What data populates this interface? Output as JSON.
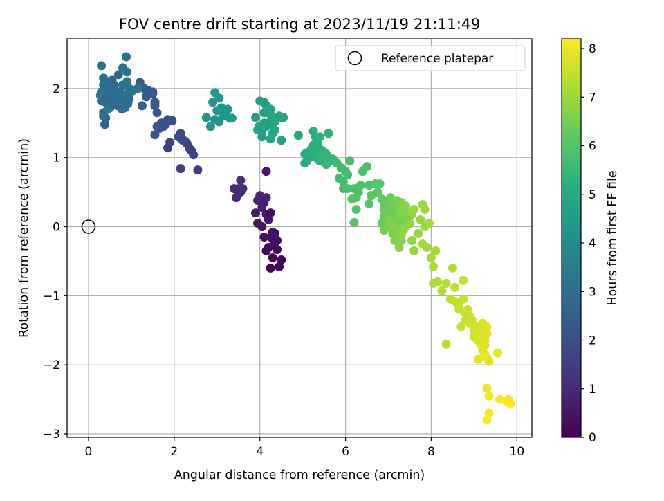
{
  "chart_data": {
    "type": "scatter",
    "title": "FOV centre drift starting at 2023/11/19 21:11:49",
    "xlabel": "Angular distance from reference (arcmin)",
    "ylabel": "Rotation from reference (arcmin)",
    "xlim": [
      -0.5,
      10.35
    ],
    "ylim": [
      -3.05,
      2.72
    ],
    "xticks": [
      0,
      2,
      4,
      6,
      8,
      10
    ],
    "yticks": [
      -3,
      -2,
      -1,
      0,
      1,
      2
    ],
    "xtick_labels": [
      "0",
      "2",
      "4",
      "6",
      "8",
      "10"
    ],
    "ytick_labels": [
      "−3",
      "−2",
      "−1",
      "0",
      "1",
      "2"
    ],
    "grid": true,
    "legend": {
      "placement": "top-right",
      "entries": [
        "Reference platepar"
      ]
    },
    "reference": {
      "x": 0,
      "y": 0,
      "label": "Reference platepar"
    },
    "colorbar": {
      "label": "Hours from first FF file",
      "range": [
        0,
        8.2
      ],
      "ticks": [
        0,
        1,
        2,
        3,
        4,
        5,
        6,
        7,
        8
      ],
      "tick_labels": [
        "0",
        "1",
        "2",
        "3",
        "4",
        "5",
        "6",
        "7",
        "8"
      ],
      "colormap": "viridis"
    },
    "series": [
      {
        "x": [
          4.25,
          4.45,
          4.3,
          4.5,
          4.15,
          4.4,
          4.2,
          4.35,
          4.3,
          4.1,
          4.05,
          3.95,
          4.2,
          4.15,
          3.9,
          4.05,
          4.1,
          3.95,
          4.15,
          4.0,
          4.25,
          4.35,
          4.4,
          4.3,
          4.28,
          4.32,
          4.15
        ],
        "y": [
          -0.6,
          -0.58,
          -0.45,
          -0.48,
          -0.35,
          -0.33,
          -0.3,
          -0.25,
          -0.18,
          -0.15,
          0.0,
          0.05,
          0.1,
          0.18,
          0.2,
          0.28,
          0.35,
          0.38,
          0.42,
          0.45,
          0.2,
          -0.1,
          -0.2,
          -0.08,
          -0.15,
          -0.14,
          0.8
        ],
        "c": [
          0.05,
          0.1,
          0.12,
          0.15,
          0.2,
          0.22,
          0.25,
          0.3,
          0.35,
          0.4,
          0.45,
          0.5,
          0.55,
          0.6,
          0.65,
          0.7,
          0.75,
          0.8,
          0.85,
          0.9,
          0.3,
          0.28,
          0.33,
          0.38,
          0.4,
          0.42,
          0.5
        ]
      },
      {
        "x": [
          3.45,
          3.55,
          3.6,
          3.5,
          3.55,
          3.4,
          3.5
        ],
        "y": [
          0.42,
          0.5,
          0.55,
          0.55,
          0.67,
          0.55,
          0.48
        ],
        "c": [
          0.95,
          1.0,
          1.05,
          1.1,
          1.1,
          1.05,
          1.0
        ]
      },
      {
        "x": [
          2.15,
          2.55,
          2.45,
          2.4,
          2.3,
          2.25,
          2.2,
          2.1,
          2.15,
          1.95,
          1.85,
          1.75,
          1.6,
          1.55,
          1.85,
          1.6,
          1.55,
          1.7,
          1.9,
          1.95,
          1.8,
          1.65,
          1.55,
          1.5,
          2.35
        ],
        "y": [
          0.84,
          0.82,
          1.04,
          1.1,
          1.2,
          1.24,
          1.25,
          1.3,
          1.35,
          1.53,
          1.55,
          1.45,
          1.45,
          1.33,
          1.14,
          1.65,
          1.75,
          1.5,
          1.22,
          1.54,
          1.48,
          1.42,
          1.8,
          1.95,
          1.14
        ],
        "c": [
          1.5,
          1.45,
          1.6,
          1.65,
          1.7,
          1.75,
          1.8,
          1.85,
          1.9,
          1.95,
          2.0,
          2.05,
          2.1,
          2.15,
          1.55,
          2.2,
          2.25,
          2.0,
          1.7,
          1.9,
          2.05,
          2.1,
          2.25,
          2.3,
          1.6
        ]
      },
      {
        "x": [
          0.38,
          0.4,
          0.35,
          0.5,
          0.3,
          0.45,
          0.55,
          0.6,
          0.5,
          0.35,
          0.3,
          0.28,
          0.4,
          0.5,
          0.45,
          0.65,
          0.7,
          0.75,
          0.8,
          0.85,
          0.9,
          0.85,
          0.8,
          0.9,
          0.95,
          0.7,
          0.6,
          0.55,
          0.45,
          0.35,
          0.3,
          0.4,
          0.5,
          0.55,
          0.65,
          0.7,
          0.6,
          0.75,
          0.8,
          0.88,
          0.9,
          0.45,
          0.35,
          0.4,
          1.2,
          1.3,
          1.35,
          1.45,
          1.55,
          1.4,
          1.25,
          1.5,
          0.92,
          0.78,
          0.68,
          0.42,
          0.58,
          0.7,
          0.85,
          0.95,
          1.0,
          1.15
        ],
        "y": [
          1.48,
          1.57,
          1.65,
          1.72,
          1.82,
          1.85,
          1.9,
          1.95,
          2.0,
          2.05,
          1.95,
          1.9,
          1.8,
          1.75,
          1.7,
          1.78,
          1.82,
          1.85,
          1.75,
          1.72,
          1.8,
          1.9,
          2.05,
          2.1,
          2.0,
          2.2,
          2.05,
          2.12,
          2.1,
          2.15,
          2.33,
          2.1,
          1.98,
          1.85,
          1.92,
          1.95,
          1.88,
          1.95,
          2.3,
          2.46,
          2.24,
          1.95,
          1.6,
          1.8,
          2.09,
          2.0,
          1.88,
          1.95,
          1.8,
          1.97,
          1.75,
          1.92,
          1.78,
          1.7,
          1.75,
          1.85,
          1.78,
          1.82,
          1.9,
          1.85,
          1.95,
          2.0
        ],
        "c": [
          2.6,
          2.65,
          2.7,
          2.75,
          2.8,
          2.85,
          2.9,
          2.95,
          3.0,
          3.05,
          3.1,
          3.15,
          3.2,
          3.25,
          3.3,
          2.8,
          2.85,
          2.9,
          2.95,
          3.0,
          3.05,
          3.1,
          3.15,
          3.2,
          3.25,
          2.7,
          2.75,
          2.8,
          2.85,
          2.9,
          3.0,
          3.05,
          3.1,
          3.15,
          2.9,
          2.95,
          3.0,
          3.05,
          3.1,
          3.15,
          3.2,
          2.95,
          3.0,
          3.05,
          2.4,
          2.45,
          2.5,
          2.35,
          2.3,
          2.5,
          2.55,
          2.35,
          3.1,
          3.0,
          2.9,
          2.8,
          2.85,
          2.9,
          3.0,
          3.05,
          3.1,
          3.2
        ]
      },
      {
        "x": [
          2.95,
          3.05,
          3.1,
          3.0,
          2.9,
          2.85,
          3.15,
          3.2,
          3.3,
          3.25,
          2.75,
          3.35,
          3.05,
          2.95,
          3.2
        ],
        "y": [
          1.94,
          1.86,
          1.72,
          1.68,
          1.8,
          1.45,
          1.6,
          1.68,
          1.57,
          1.7,
          1.58,
          1.57,
          1.52,
          1.55,
          1.62
        ],
        "c": [
          4.3,
          4.35,
          4.4,
          4.45,
          4.3,
          4.35,
          4.4,
          4.45,
          4.5,
          4.4,
          4.3,
          4.5,
          4.35,
          4.3,
          4.4
        ]
      },
      {
        "x": [
          3.9,
          4.0,
          4.05,
          4.1,
          4.15,
          4.2,
          4.25,
          4.3,
          4.35,
          4.45,
          4.55,
          4.5,
          4.1,
          4.2,
          3.95,
          4.3,
          4.25,
          4.1,
          4.0,
          4.15,
          3.98,
          4.05,
          4.25,
          4.5,
          4.35
        ],
        "y": [
          1.58,
          1.42,
          1.38,
          1.5,
          1.45,
          1.48,
          1.62,
          1.55,
          1.4,
          1.6,
          1.58,
          1.25,
          1.65,
          1.5,
          1.4,
          1.35,
          1.27,
          1.8,
          1.82,
          1.75,
          1.45,
          1.3,
          1.7,
          1.58,
          1.52
        ],
        "c": [
          4.6,
          4.65,
          4.7,
          4.75,
          4.8,
          4.85,
          4.9,
          4.95,
          5.0,
          4.7,
          4.75,
          4.8,
          4.6,
          4.65,
          4.7,
          4.85,
          4.9,
          4.55,
          4.6,
          4.65,
          4.7,
          4.75,
          4.8,
          4.85,
          4.9
        ]
      },
      {
        "x": [
          4.9,
          5.05,
          5.1,
          5.2,
          5.25,
          5.3,
          5.35,
          5.4,
          5.45,
          5.5,
          5.55,
          5.6,
          5.05,
          5.15,
          5.3,
          5.4,
          5.5,
          5.6,
          5.65,
          5.3,
          5.2,
          5.35,
          5.45,
          5.55,
          5.6,
          5.1,
          5.25,
          5.45,
          5.7,
          5.4,
          5.55,
          5.65
        ],
        "y": [
          1.32,
          1.05,
          0.95,
          1.1,
          1.38,
          1.3,
          1.2,
          1.12,
          1.05,
          1.0,
          0.92,
          1.35,
          0.92,
          1.0,
          1.15,
          0.95,
          1.08,
          1.0,
          0.98,
          1.05,
          1.12,
          0.98,
          1.02,
          0.9,
          0.95,
          1.07,
          1.18,
          1.1,
          0.98,
          1.3,
          1.05,
          0.95
        ],
        "c": [
          5.0,
          5.1,
          5.15,
          5.2,
          5.1,
          5.15,
          5.2,
          5.25,
          5.3,
          5.35,
          5.4,
          5.3,
          5.05,
          5.1,
          5.15,
          5.2,
          5.25,
          5.3,
          5.35,
          5.2,
          5.25,
          5.3,
          5.35,
          5.4,
          5.45,
          5.15,
          5.2,
          5.25,
          5.45,
          5.3,
          5.35,
          5.4
        ]
      },
      {
        "x": [
          5.8,
          5.9,
          6.0,
          6.1,
          6.2,
          6.3,
          6.35,
          6.25,
          6.15,
          6.05,
          5.95,
          5.85,
          6.4,
          6.5,
          6.55,
          6.6,
          6.7,
          6.8,
          6.75,
          6.85,
          6.9,
          6.95,
          7.0,
          7.05,
          7.1,
          7.15,
          7.2,
          7.25,
          7.3,
          7.35,
          7.4,
          7.45,
          7.5,
          7.55,
          7.6,
          6.25,
          6.2,
          6.55,
          6.6,
          6.9,
          6.95,
          7.05,
          7.15,
          7.25,
          7.3,
          6.95,
          7.0,
          7.1,
          7.2,
          7.35,
          7.45,
          6.85,
          6.9,
          7.0,
          7.1,
          7.2,
          7.25,
          7.05,
          7.15,
          7.35,
          6.05,
          5.95
        ],
        "y": [
          0.92,
          0.85,
          0.8,
          0.95,
          0.55,
          0.5,
          0.6,
          0.42,
          0.4,
          0.55,
          0.65,
          0.7,
          0.8,
          0.87,
          0.6,
          0.45,
          0.62,
          0.62,
          0.5,
          0.4,
          0.35,
          0.3,
          0.35,
          0.42,
          0.28,
          0.2,
          0.38,
          0.3,
          0.35,
          0.25,
          0.3,
          0.2,
          0.15,
          0.18,
          0.25,
          0.25,
          0.06,
          0.33,
          0.45,
          0.15,
          0.1,
          0.15,
          0.05,
          0.12,
          0.08,
          0.2,
          0.05,
          0.1,
          0.18,
          0.0,
          0.1,
          0.05,
          0.25,
          0.15,
          0.0,
          0.12,
          0.18,
          0.22,
          0.08,
          0.2,
          0.75,
          0.55
        ],
        "c": [
          5.6,
          5.65,
          5.7,
          5.75,
          5.8,
          5.85,
          5.9,
          5.95,
          6.0,
          5.8,
          5.7,
          5.65,
          5.8,
          5.85,
          5.9,
          6.0,
          6.05,
          6.1,
          6.1,
          6.15,
          6.2,
          6.25,
          6.3,
          6.35,
          6.4,
          6.45,
          6.5,
          6.55,
          6.6,
          6.65,
          6.7,
          6.75,
          6.8,
          6.85,
          6.9,
          5.95,
          6.0,
          6.05,
          6.1,
          6.2,
          6.25,
          6.3,
          6.35,
          6.4,
          6.45,
          6.3,
          6.35,
          6.4,
          6.45,
          6.5,
          6.55,
          6.25,
          6.3,
          6.35,
          6.4,
          6.5,
          6.55,
          6.35,
          6.45,
          6.6,
          5.75,
          5.7
        ]
      },
      {
        "x": [
          6.9,
          7.0,
          7.1,
          7.2,
          7.3,
          7.15,
          7.25,
          7.35,
          7.5,
          7.55,
          7.6,
          7.7,
          7.8,
          7.85,
          7.9,
          7.75,
          7.8,
          7.85,
          7.95,
          7.0,
          7.05,
          7.25,
          7.4,
          7.3,
          7.15
        ],
        "y": [
          -0.05,
          0.02,
          -0.1,
          -0.15,
          -0.2,
          -0.2,
          -0.3,
          -0.05,
          0.05,
          -0.2,
          -0.35,
          -0.1,
          -0.25,
          0.0,
          -0.3,
          0.1,
          0.32,
          0.25,
          0.05,
          0.1,
          0.05,
          -0.1,
          0.0,
          -0.12,
          0.0
        ],
        "c": [
          6.5,
          6.55,
          6.6,
          6.65,
          6.7,
          6.65,
          6.7,
          6.75,
          6.8,
          6.85,
          6.9,
          6.95,
          7.0,
          7.0,
          7.05,
          6.9,
          6.95,
          7.0,
          7.05,
          6.55,
          6.6,
          6.7,
          6.75,
          6.75,
          6.65
        ]
      },
      {
        "x": [
          8.1,
          8.0,
          8.05,
          8.15,
          8.25,
          8.35,
          8.45,
          8.55,
          8.65,
          8.75,
          8.5,
          8.6,
          8.7,
          8.8,
          8.9,
          9.0,
          9.05,
          9.1,
          9.15,
          9.2,
          9.25,
          9.3,
          8.75,
          8.85,
          8.95,
          9.05,
          9.15,
          9.25,
          9.35,
          9.1,
          9.2,
          8.65,
          8.55,
          8.8,
          8.9,
          8.35,
          9.0,
          9.2,
          9.3,
          9.55,
          8.05,
          9.15,
          9.25,
          8.95,
          9.05,
          9.3,
          9.2
        ],
        "y": [
          -0.35,
          -0.45,
          -0.58,
          -0.8,
          -0.93,
          -0.82,
          -1.05,
          -0.88,
          -1.2,
          -1.05,
          -0.6,
          -1.1,
          -1.45,
          -1.35,
          -1.3,
          -1.5,
          -1.55,
          -1.65,
          -1.7,
          -1.75,
          -1.85,
          -1.9,
          -0.78,
          -1.2,
          -1.35,
          -1.55,
          -1.6,
          -1.72,
          -1.95,
          -1.92,
          -1.8,
          -1.12,
          -1.08,
          -1.25,
          -1.4,
          -1.7,
          -1.6,
          -1.6,
          -1.45,
          -1.83,
          -0.82,
          -1.5,
          -1.65,
          -1.35,
          -1.45,
          -1.55,
          -1.4
        ],
        "c": [
          7.1,
          7.15,
          7.2,
          7.25,
          7.3,
          7.35,
          7.4,
          7.45,
          7.5,
          7.55,
          7.3,
          7.45,
          7.55,
          7.6,
          7.65,
          7.7,
          7.75,
          7.8,
          7.85,
          7.9,
          7.95,
          8.0,
          7.5,
          7.6,
          7.65,
          7.7,
          7.75,
          7.8,
          7.85,
          7.9,
          7.85,
          7.5,
          7.45,
          7.55,
          7.6,
          7.3,
          7.7,
          7.8,
          7.85,
          7.9,
          7.2,
          7.75,
          7.8,
          7.65,
          7.7,
          7.8,
          7.75
        ]
      },
      {
        "x": [
          9.3,
          9.35,
          9.35,
          9.3,
          9.6,
          9.75,
          9.8,
          9.85
        ],
        "y": [
          -2.34,
          -2.45,
          -2.7,
          -2.8,
          -2.5,
          -2.52,
          -2.5,
          -2.56
        ],
        "c": [
          8.05,
          8.1,
          8.15,
          8.2,
          8.15,
          8.2,
          8.2,
          8.2
        ]
      }
    ]
  }
}
